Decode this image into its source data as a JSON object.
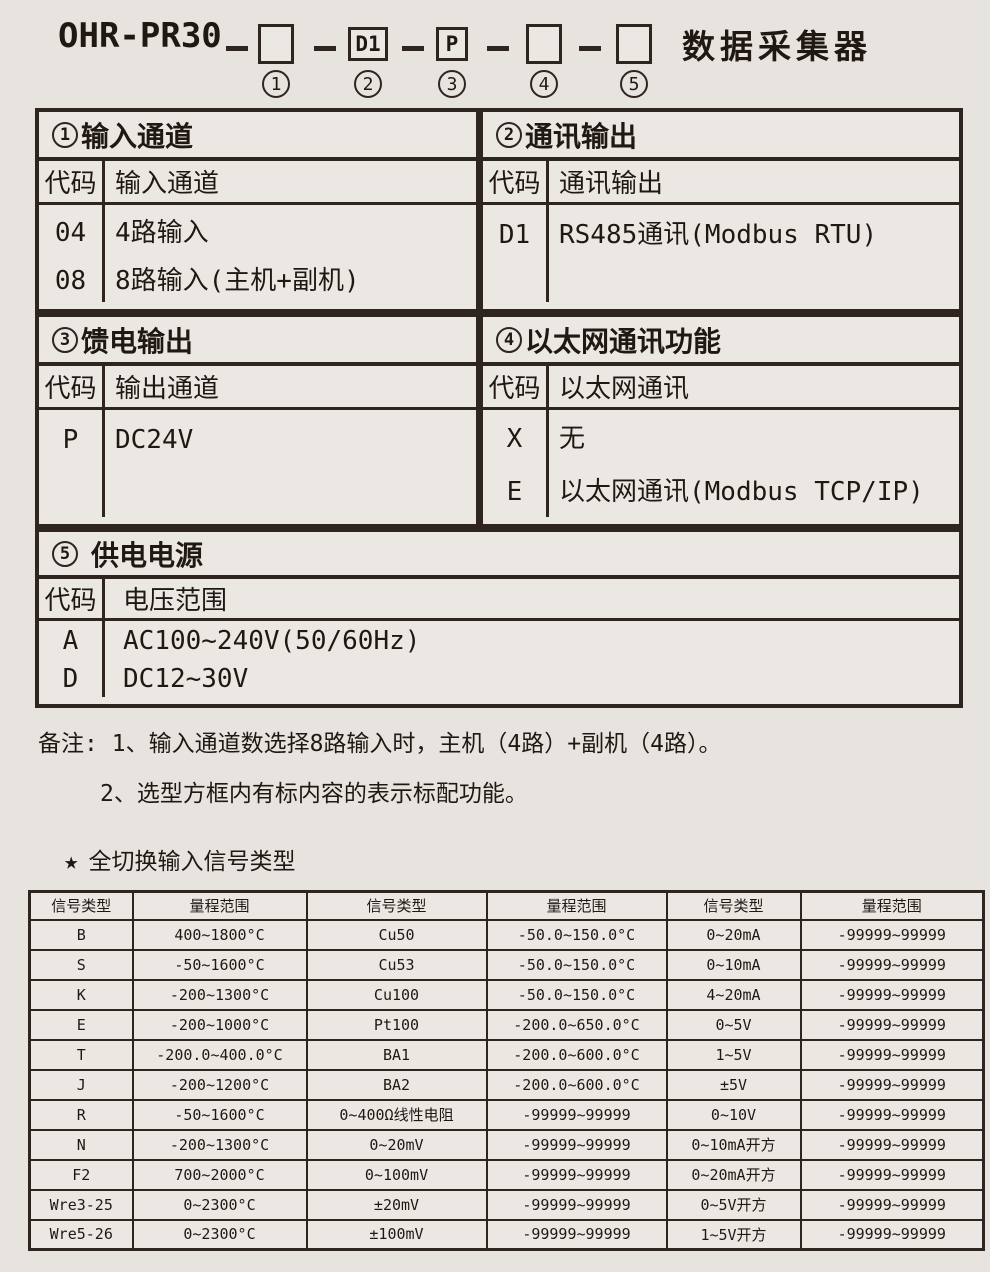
{
  "colors": {
    "page_bg": "#e7e4e0",
    "panel_bg": "#ebe8e4",
    "border": "#2e2520",
    "text": "#1f1813"
  },
  "header": {
    "model": "OHR-PR30",
    "boxes": [
      "",
      "D1",
      "P",
      "",
      ""
    ],
    "box_numbers": [
      "1",
      "2",
      "3",
      "4",
      "5"
    ],
    "product_name": "数据采集器"
  },
  "selection_tables": [
    {
      "number": "1",
      "title": "输入通道",
      "code_header": "代码",
      "desc_header": "输入通道",
      "rows": [
        {
          "code": "04",
          "desc": "4路输入"
        },
        {
          "code": "08",
          "desc": "8路输入(主机+副机)"
        }
      ]
    },
    {
      "number": "2",
      "title": "通讯输出",
      "code_header": "代码",
      "desc_header": "通讯输出",
      "rows": [
        {
          "code": "D1",
          "desc": "RS485通讯(Modbus RTU)"
        }
      ]
    },
    {
      "number": "3",
      "title": "馈电输出",
      "code_header": "代码",
      "desc_header": "输出通道",
      "rows": [
        {
          "code": "P",
          "desc": "DC24V"
        }
      ]
    },
    {
      "number": "4",
      "title": "以太网通讯功能",
      "code_header": "代码",
      "desc_header": "以太网通讯",
      "rows": [
        {
          "code": "X",
          "desc": "无"
        },
        {
          "code": "E",
          "desc": "以太网通讯(Modbus TCP/IP)"
        }
      ]
    },
    {
      "number": "5",
      "title": "供电电源",
      "code_header": "代码",
      "desc_header": "电压范围",
      "rows": [
        {
          "code": "A",
          "desc": "AC100~240V(50/60Hz)"
        },
        {
          "code": "D",
          "desc": "DC12~30V"
        }
      ]
    }
  ],
  "notes": {
    "label": "备注:",
    "items": [
      "1、输入通道数选择8路输入时，主机（4路）+副机（4路）。",
      "2、选型方框内有标内容的表示标配功能。"
    ]
  },
  "signal_section": {
    "star": "★",
    "title": "全切换输入信号类型"
  },
  "signal_table": {
    "headers": [
      "信号类型",
      "量程范围",
      "信号类型",
      "量程范围",
      "信号类型",
      "量程范围"
    ],
    "rows": [
      [
        "B",
        "400~1800°C",
        "Cu50",
        "-50.0~150.0°C",
        "0~20mA",
        "-99999~99999"
      ],
      [
        "S",
        "-50~1600°C",
        "Cu53",
        "-50.0~150.0°C",
        "0~10mA",
        "-99999~99999"
      ],
      [
        "K",
        "-200~1300°C",
        "Cu100",
        "-50.0~150.0°C",
        "4~20mA",
        "-99999~99999"
      ],
      [
        "E",
        "-200~1000°C",
        "Pt100",
        "-200.0~650.0°C",
        "0~5V",
        "-99999~99999"
      ],
      [
        "T",
        "-200.0~400.0°C",
        "BA1",
        "-200.0~600.0°C",
        "1~5V",
        "-99999~99999"
      ],
      [
        "J",
        "-200~1200°C",
        "BA2",
        "-200.0~600.0°C",
        "±5V",
        "-99999~99999"
      ],
      [
        "R",
        "-50~1600°C",
        "0~400Ω线性电阻",
        "-99999~99999",
        "0~10V",
        "-99999~99999"
      ],
      [
        "N",
        "-200~1300°C",
        "0~20mV",
        "-99999~99999",
        "0~10mA开方",
        "-99999~99999"
      ],
      [
        "F2",
        "700~2000°C",
        "0~100mV",
        "-99999~99999",
        "0~20mA开方",
        "-99999~99999"
      ],
      [
        "Wre3-25",
        "0~2300°C",
        "±20mV",
        "-99999~99999",
        "0~5V开方",
        "-99999~99999"
      ],
      [
        "Wre5-26",
        "0~2300°C",
        "±100mV",
        "-99999~99999",
        "1~5V开方",
        "-99999~99999"
      ]
    ]
  }
}
